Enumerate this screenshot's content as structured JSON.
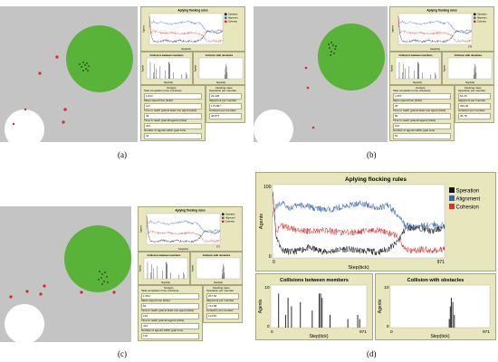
{
  "captions": [
    "(a)",
    "(b)",
    "(c)",
    "(d)"
  ],
  "colors": {
    "world_bg": "#c4c4c4",
    "goal_green": "#59b339",
    "obstacle_white": "#ffffff",
    "agent_red": "#d8252b",
    "plot_bg": "#e7e6bd",
    "separation": "#111111",
    "alignment": "#3a66b4",
    "cohesion": "#d8302f"
  },
  "small_panel": {
    "flocking_title": "Aplying flocking rules",
    "ylabel": "Agents",
    "xlabel": "Step(tick)",
    "collisions_members_title": "Collisions between members",
    "collisions_obstacles_title": "Collision with obstacles",
    "legend": [
      "Operation",
      "Alignment",
      "Cohesion"
    ],
    "outputs_header": "Outputs",
    "flocking_rules_header": "Flocking rules",
    "outputs_labels": [
      "Task completion time (minutes)",
      "Mean speed time (ticks)",
      "Time to reach goal at least one agent (ticks)",
      "Time to reach goal all agents (ticks)",
      "Number of agents within goal zone"
    ],
    "rules_labels": [
      "Operation per member",
      "Alignment per member",
      "Cohesion per member"
    ]
  },
  "panel_a": {
    "outputs_values": [
      "1.624",
      "127",
      "36",
      "224",
      "41"
    ],
    "rules_values": [
      "22.225",
      "175.867",
      "46.877"
    ]
  },
  "panel_b": {
    "outputs_values": [
      "1.667",
      "28",
      "84",
      "194",
      "54"
    ],
    "rules_values": [
      "64.29",
      "339.46",
      "46.78"
    ],
    "x_max": "178"
  },
  "panel_c": {
    "outputs_values": [
      "1.953",
      "52",
      "140",
      "412",
      "120"
    ],
    "rules_values": [
      "207.52",
      "714.58",
      "114.55"
    ],
    "x_max": "971"
  },
  "panel_d": {
    "flocking_title": "Aplying flocking rules",
    "ylabel": "Agents",
    "xlabel": "Step(tick)",
    "y_max": "100",
    "y_zero": "0",
    "x_zero": "0",
    "x_max": "971",
    "legend": [
      "Speration",
      "Alignment",
      "Cohesion"
    ],
    "collisions_members_title": "Collisions between members",
    "collisions_obstacles_title": "Collision with obstacles",
    "coll_y_max": "10"
  },
  "chart_data": [
    {
      "type": "line",
      "title": "Aplying flocking rules",
      "xlabel": "Step(tick)",
      "ylabel": "Agents",
      "xlim": [
        0,
        971
      ],
      "ylim": [
        0,
        100
      ],
      "series": [
        {
          "name": "Speration",
          "x": [
            0,
            20,
            50,
            100,
            150,
            200,
            300,
            400,
            500,
            600,
            650,
            700,
            750,
            800,
            850,
            900,
            971
          ],
          "values": [
            95,
            30,
            12,
            8,
            10,
            14,
            8,
            12,
            10,
            8,
            12,
            20,
            40,
            42,
            40,
            36,
            42
          ]
        },
        {
          "name": "Alignment",
          "x": [
            0,
            20,
            50,
            100,
            150,
            200,
            300,
            400,
            500,
            600,
            650,
            700,
            750,
            800,
            850,
            900,
            971
          ],
          "values": [
            60,
            70,
            75,
            68,
            72,
            70,
            65,
            70,
            75,
            68,
            72,
            60,
            44,
            42,
            44,
            46,
            44
          ]
        },
        {
          "name": "Cohesion",
          "x": [
            0,
            20,
            50,
            100,
            150,
            200,
            300,
            400,
            500,
            600,
            650,
            700,
            750,
            800,
            850,
            900,
            971
          ],
          "values": [
            90,
            35,
            45,
            40,
            38,
            36,
            38,
            34,
            36,
            38,
            34,
            30,
            12,
            10,
            12,
            10,
            12
          ]
        }
      ]
    },
    {
      "type": "bar",
      "title": "Collisions between members",
      "xlabel": "Step(tick)",
      "ylabel": "Agents",
      "xlim": [
        0,
        971
      ],
      "ylim": [
        0,
        10
      ],
      "x": [
        80,
        150,
        175,
        210,
        300,
        420,
        490,
        505,
        520,
        600,
        780,
        880,
        900
      ],
      "values": [
        8,
        3,
        7,
        5,
        6,
        4,
        8,
        8,
        7,
        3,
        2,
        3,
        2
      ]
    },
    {
      "type": "bar",
      "title": "Collision with obstacles",
      "xlabel": "Step(tick)",
      "ylabel": "Agents",
      "xlim": [
        0,
        971
      ],
      "ylim": [
        0,
        10
      ],
      "x": [
        575,
        585,
        595,
        610,
        625
      ],
      "values": [
        2,
        5,
        7,
        6,
        3
      ]
    }
  ]
}
